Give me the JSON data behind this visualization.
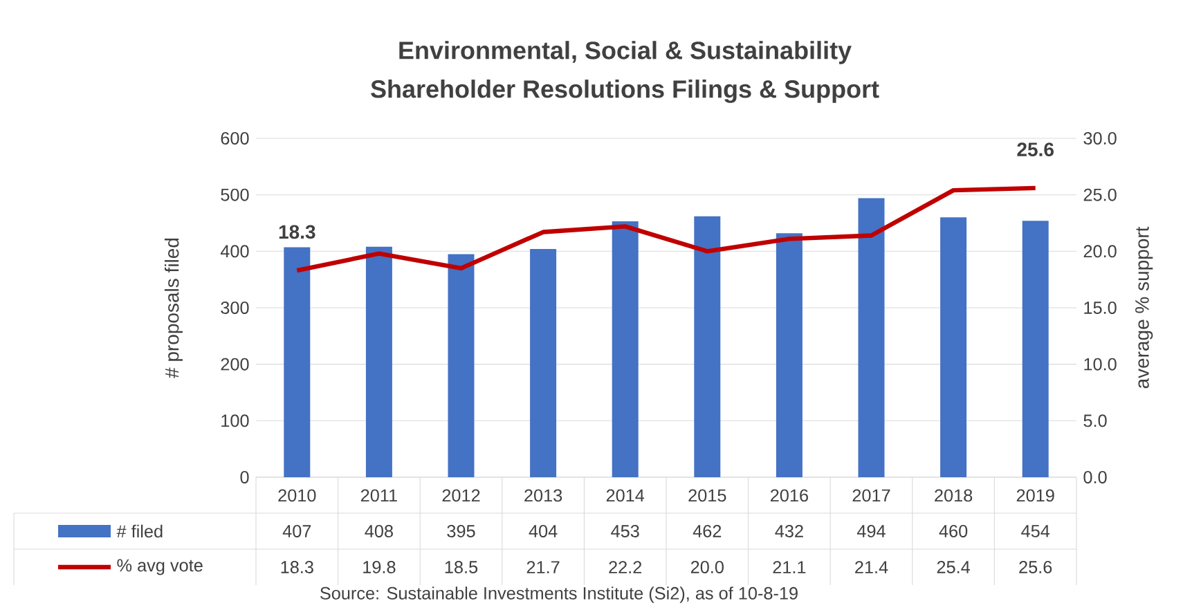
{
  "chart_data": {
    "type": "bar",
    "title": "Environmental, Social & Sustainability",
    "subtitle": "Shareholder Resolutions Filings & Support",
    "categories": [
      "2010",
      "2011",
      "2012",
      "2013",
      "2014",
      "2015",
      "2016",
      "2017",
      "2018",
      "2019"
    ],
    "series": [
      {
        "name": "# filed",
        "color": "#4472c4",
        "values": [
          407,
          408,
          395,
          404,
          453,
          462,
          432,
          494,
          460,
          454
        ]
      },
      {
        "name": "% avg vote",
        "type": "line",
        "axis": "y2",
        "color": "#c00000",
        "values": [
          18.3,
          19.8,
          18.5,
          21.7,
          22.2,
          20.0,
          21.1,
          21.4,
          25.4,
          25.6
        ],
        "value_labels": [
          "18.3",
          "19.8",
          "18.5",
          "21.7",
          "22.2",
          "20.0",
          "21.1",
          "21.4",
          "25.4",
          "25.6"
        ]
      }
    ],
    "ylabel": "# proposals filed",
    "y2label": "average % support",
    "ylim": [
      0,
      600
    ],
    "yticks": [
      0,
      100,
      200,
      300,
      400,
      500,
      600
    ],
    "y2lim": [
      0,
      30
    ],
    "y2ticks": [
      {
        "value": 0,
        "label": "0.0"
      },
      {
        "value": 5,
        "label": "5.0"
      },
      {
        "value": 10,
        "label": "10.0"
      },
      {
        "value": 15,
        "label": "15.0"
      },
      {
        "value": 20,
        "label": "20.0"
      },
      {
        "value": 25,
        "label": "25.0"
      },
      {
        "value": 30,
        "label": "30.0"
      }
    ],
    "grid": "y",
    "legend": "bottom",
    "data_labels": true,
    "marker": "none",
    "line_style": "solid",
    "annotations": [
      "Source:  Sustainable Investments Institute (Si2), as of 10-8-19",
      "18.3",
      "25.6"
    ]
  }
}
